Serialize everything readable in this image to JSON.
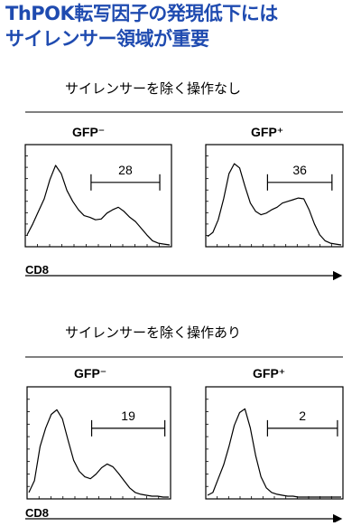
{
  "figure_title": {
    "line1": "ThPOK転写因子の発現低下には",
    "line2": "サイレンサー領域が重要",
    "color": "#1f4bb0"
  },
  "axis_label": "CD8",
  "chart_data": [
    {
      "type": "histogram",
      "section": "サイレンサーを除く操作なし",
      "panel_label": "GFP⁻",
      "gate_value": "28",
      "x": [
        0,
        0.04,
        0.08,
        0.12,
        0.16,
        0.2,
        0.24,
        0.28,
        0.32,
        0.36,
        0.4,
        0.44,
        0.48,
        0.52,
        0.56,
        0.6,
        0.64,
        0.68,
        0.72,
        0.76,
        0.8,
        0.84,
        0.88,
        0.92,
        0.96,
        1.0
      ],
      "y": [
        0.12,
        0.25,
        0.4,
        0.55,
        0.78,
        0.95,
        0.85,
        0.65,
        0.52,
        0.42,
        0.35,
        0.33,
        0.3,
        0.31,
        0.38,
        0.42,
        0.45,
        0.4,
        0.33,
        0.28,
        0.2,
        0.12,
        0.05,
        0.02,
        0.01,
        0.0
      ]
    },
    {
      "type": "histogram",
      "section": "サイレンサーを除く操作なし",
      "panel_label": "GFP⁺",
      "gate_value": "36",
      "x": [
        0,
        0.04,
        0.08,
        0.12,
        0.16,
        0.2,
        0.24,
        0.28,
        0.32,
        0.36,
        0.4,
        0.44,
        0.48,
        0.52,
        0.56,
        0.6,
        0.64,
        0.68,
        0.72,
        0.76,
        0.8,
        0.84,
        0.88,
        0.92,
        0.96,
        1.0
      ],
      "y": [
        0.1,
        0.15,
        0.3,
        0.55,
        0.85,
        0.97,
        0.92,
        0.7,
        0.5,
        0.4,
        0.36,
        0.38,
        0.42,
        0.45,
        0.5,
        0.52,
        0.54,
        0.56,
        0.55,
        0.42,
        0.25,
        0.12,
        0.05,
        0.02,
        0.01,
        0.0
      ]
    },
    {
      "type": "histogram",
      "section": "サイレンサーを除く操作あり",
      "panel_label": "GFP⁻",
      "gate_value": "19",
      "x": [
        0,
        0.04,
        0.08,
        0.12,
        0.16,
        0.2,
        0.24,
        0.28,
        0.32,
        0.36,
        0.4,
        0.44,
        0.48,
        0.52,
        0.56,
        0.6,
        0.64,
        0.68,
        0.72,
        0.76,
        0.8,
        0.84,
        0.88,
        0.92,
        0.96,
        1.0
      ],
      "y": [
        0.05,
        0.18,
        0.55,
        0.75,
        0.9,
        0.95,
        0.85,
        0.62,
        0.4,
        0.28,
        0.22,
        0.2,
        0.25,
        0.32,
        0.36,
        0.33,
        0.26,
        0.18,
        0.1,
        0.05,
        0.03,
        0.02,
        0.01,
        0.01,
        0.0,
        0.0
      ]
    },
    {
      "type": "histogram",
      "section": "サイレンサーを除く操作あり",
      "panel_label": "GFP⁺",
      "gate_value": "2",
      "x": [
        0,
        0.04,
        0.08,
        0.12,
        0.16,
        0.2,
        0.24,
        0.28,
        0.32,
        0.36,
        0.4,
        0.44,
        0.48,
        0.52,
        0.56,
        0.6,
        0.64,
        0.68,
        0.72,
        0.76,
        0.8,
        0.84,
        0.88,
        0.92,
        0.96,
        1.0
      ],
      "y": [
        0.02,
        0.05,
        0.2,
        0.35,
        0.55,
        0.78,
        0.92,
        0.96,
        0.75,
        0.45,
        0.22,
        0.1,
        0.05,
        0.03,
        0.02,
        0.01,
        0.01,
        0.0,
        0.0,
        0.0,
        0.0,
        0.0,
        0.0,
        0.0,
        0.0,
        0.0
      ]
    }
  ]
}
